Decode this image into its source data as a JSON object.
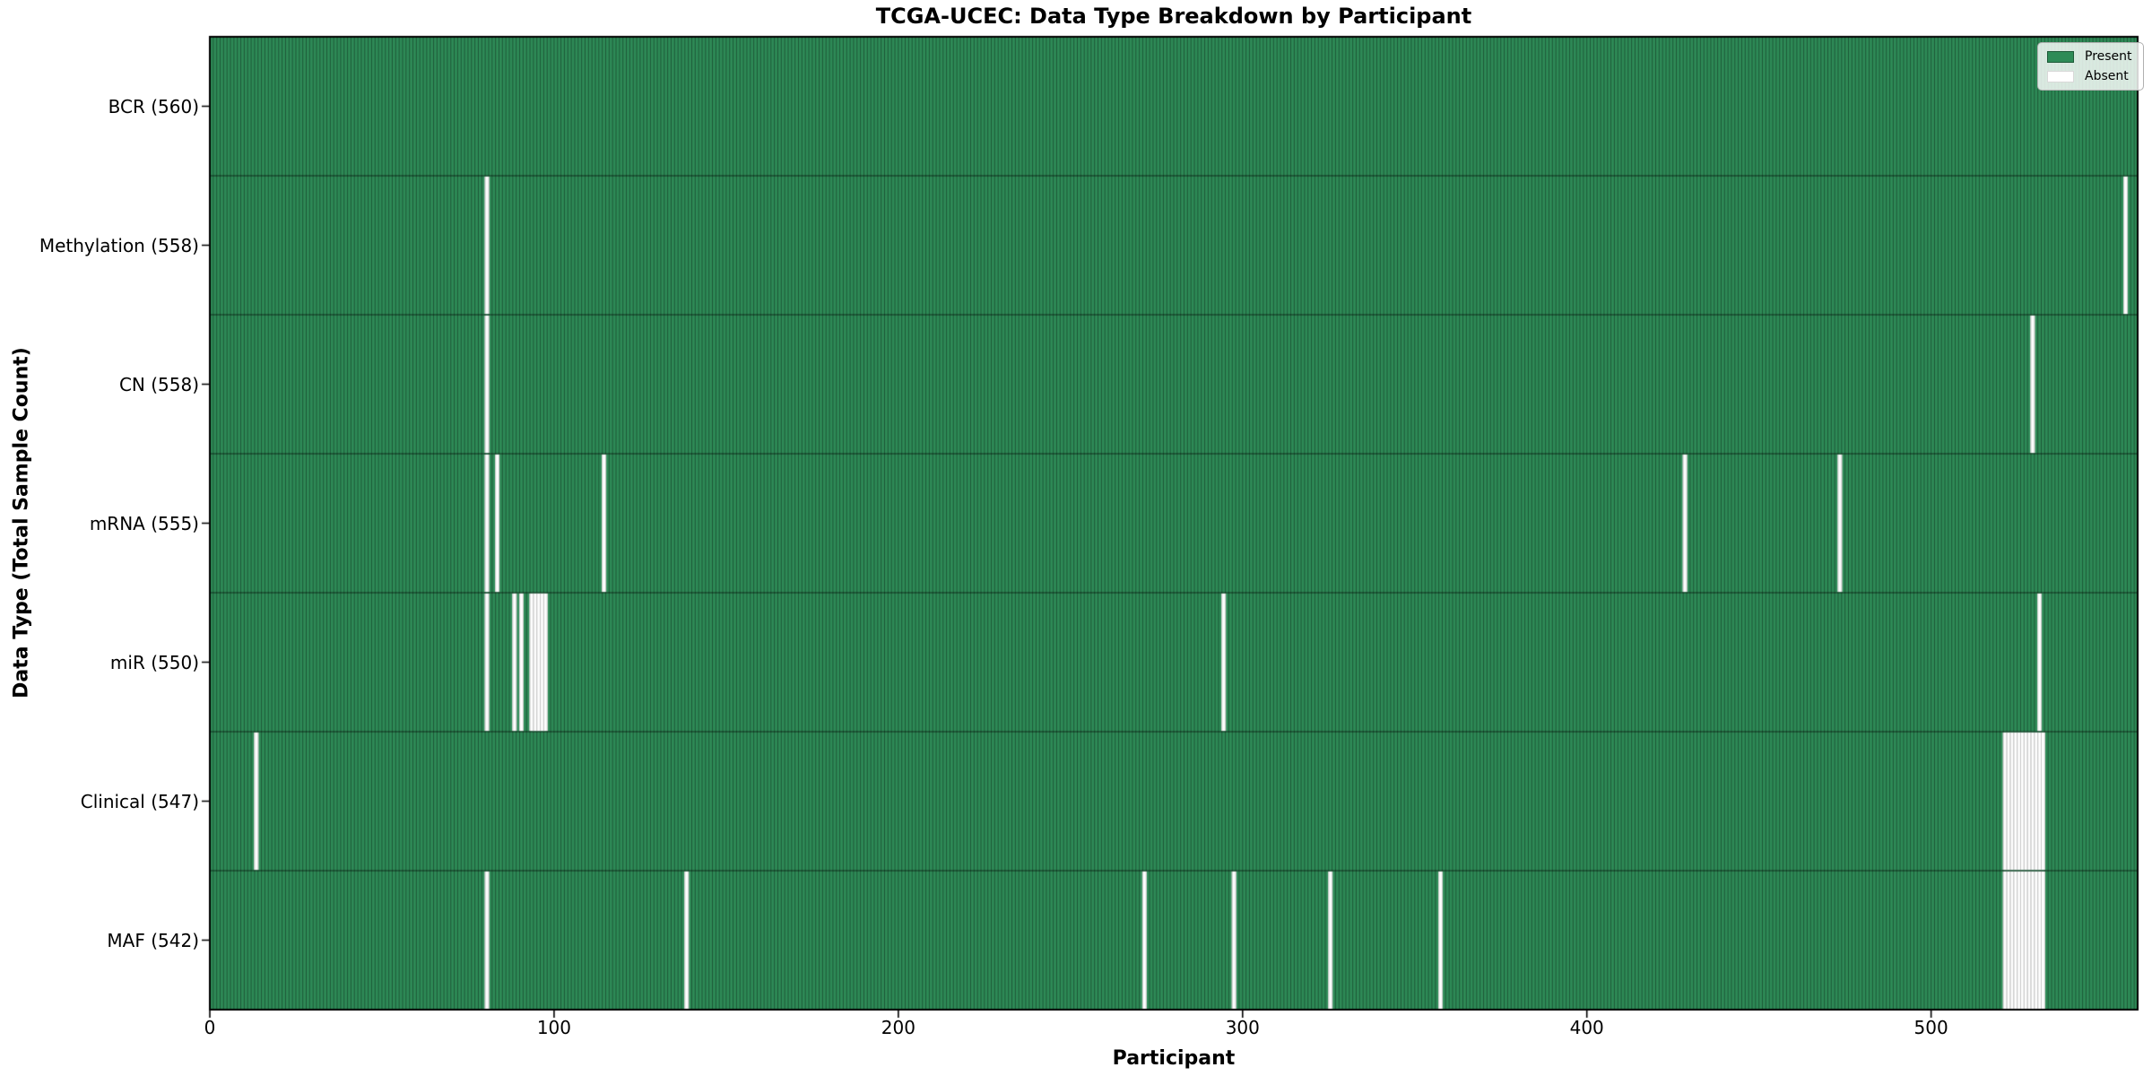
{
  "chart_data": {
    "type": "heatmap",
    "title": "TCGA-UCEC: Data Type Breakdown by Participant",
    "xlabel": "Participant",
    "ylabel": "Data Type (Total Sample Count)",
    "n_participants": 560,
    "x_ticks": [
      0,
      100,
      200,
      300,
      400,
      500
    ],
    "legend": [
      {
        "label": "Present",
        "color": "#2E8B57"
      },
      {
        "label": "Absent",
        "color": "#FFFFFF"
      }
    ],
    "legend_position": "upper right",
    "grid": false,
    "colors": {
      "present": "#2E8B57",
      "absent": "#FFFFFF",
      "present_cell_edge": "rgba(0,0,0,0.42)",
      "absent_cell_edge": "#c6c6c6",
      "row_separator": "rgba(0,0,0,0.65)",
      "spine": "#000000",
      "legend_border": "#b0b0b0"
    },
    "row_label_format": "{label} ({total})",
    "rows": [
      {
        "label": "BCR",
        "total": 560,
        "absent": []
      },
      {
        "label": "Methylation",
        "total": 558,
        "absent": [
          80,
          556
        ]
      },
      {
        "label": "CN",
        "total": 558,
        "absent": [
          80,
          529
        ]
      },
      {
        "label": "mRNA",
        "total": 555,
        "absent": [
          80,
          83,
          114,
          428,
          473
        ]
      },
      {
        "label": "miR",
        "total": 550,
        "absent": [
          80,
          88,
          90,
          93,
          94,
          95,
          96,
          97,
          294,
          531
        ]
      },
      {
        "label": "Clinical",
        "total": 547,
        "absent": [
          13,
          521,
          522,
          523,
          524,
          525,
          526,
          527,
          528,
          529,
          530,
          531,
          532
        ]
      },
      {
        "label": "MAF",
        "total": 542,
        "absent": [
          80,
          138,
          271,
          297,
          325,
          357,
          521,
          522,
          523,
          524,
          525,
          526,
          527,
          528,
          529,
          530,
          531,
          532
        ]
      }
    ]
  }
}
